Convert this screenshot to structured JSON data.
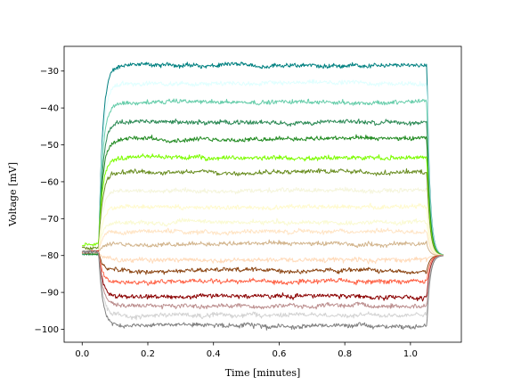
{
  "chart_data": {
    "type": "line",
    "title": "",
    "xlabel": "Time [minutes]",
    "ylabel": "Voltage [mV]",
    "xlim": [
      -0.055,
      1.155
    ],
    "ylim": [
      -103.5,
      -23.3
    ],
    "xticks": [
      0.0,
      0.2,
      0.4,
      0.6,
      0.8,
      1.0
    ],
    "xtick_labels": [
      "0.0",
      "0.2",
      "0.4",
      "0.6",
      "0.8",
      "1.0"
    ],
    "yticks": [
      -30,
      -40,
      -50,
      -60,
      -70,
      -80,
      -90,
      -100
    ],
    "ytick_labels": [
      "−30",
      "−40",
      "−50",
      "−60",
      "−70",
      "−80",
      "−90",
      "−100"
    ],
    "grid": false,
    "legend": "none",
    "stimulus": {
      "onset_min": 0.05,
      "offset_min": 1.05,
      "end_min": 1.1,
      "resting_mV": -80
    },
    "series": [
      {
        "color": "#008080",
        "baseline_mV": -79.5,
        "plateau_mV": -28.5
      },
      {
        "color": "#e0ffff",
        "baseline_mV": -79.5,
        "plateau_mV": -33.5
      },
      {
        "color": "#66cdaa",
        "baseline_mV": -79.5,
        "plateau_mV": -38.5
      },
      {
        "color": "#2e8b57",
        "baseline_mV": -79.5,
        "plateau_mV": -44.0
      },
      {
        "color": "#228b22",
        "baseline_mV": -79.5,
        "plateau_mV": -48.5
      },
      {
        "color": "#7cfc00",
        "baseline_mV": -77.0,
        "plateau_mV": -53.5
      },
      {
        "color": "#6b8e23",
        "baseline_mV": -78.0,
        "plateau_mV": -57.5
      },
      {
        "color": "#f5f5dc",
        "baseline_mV": -79.0,
        "plateau_mV": -62.5
      },
      {
        "color": "#fffacd",
        "baseline_mV": -79.0,
        "plateau_mV": -67.0
      },
      {
        "color": "#fafad2",
        "baseline_mV": -79.0,
        "plateau_mV": -71.0
      },
      {
        "color": "#ffe4c4",
        "baseline_mV": -79.0,
        "plateau_mV": -73.5
      },
      {
        "color": "#d2b48c",
        "baseline_mV": -79.0,
        "plateau_mV": -77.0
      },
      {
        "color": "#ffdab9",
        "baseline_mV": -79.0,
        "plateau_mV": -81.0
      },
      {
        "color": "#8b4513",
        "baseline_mV": -79.0,
        "plateau_mV": -84.0
      },
      {
        "color": "#ff6347",
        "baseline_mV": -79.0,
        "plateau_mV": -87.0
      },
      {
        "color": "#8b0000",
        "baseline_mV": -79.0,
        "plateau_mV": -91.0
      },
      {
        "color": "#bc8f8f",
        "baseline_mV": -79.0,
        "plateau_mV": -93.5
      },
      {
        "color": "#d3d3d3",
        "baseline_mV": -79.0,
        "plateau_mV": -96.0
      },
      {
        "color": "#808080",
        "baseline_mV": -79.0,
        "plateau_mV": -99.0
      }
    ]
  }
}
